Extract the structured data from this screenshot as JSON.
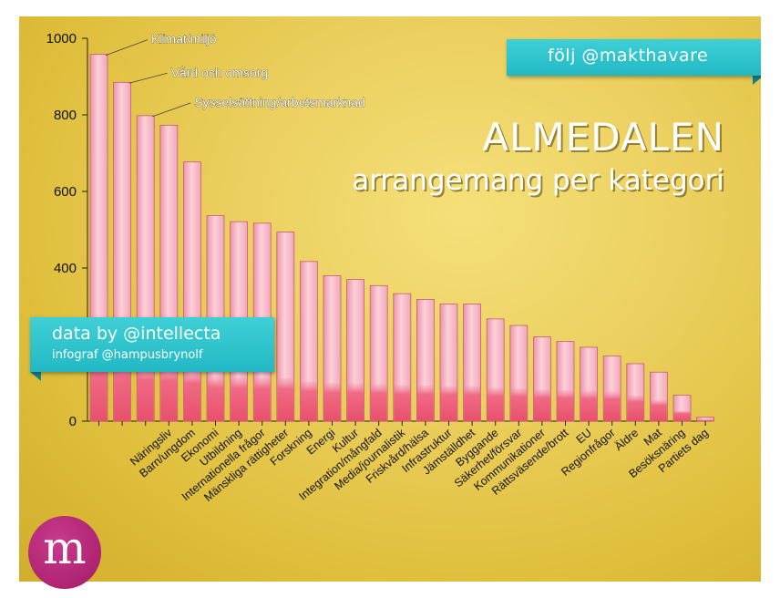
{
  "chart_data": {
    "type": "bar",
    "title": "ALMEDALEN",
    "subtitle": "arrangemang per kategori",
    "categories": [
      "Klimat/miljö",
      "Vård och omsorg",
      "Sysselsättning/arbetsmarknad",
      "Näringsliv",
      "Barn/ungdom",
      "Ekonomi",
      "Utbildning",
      "Internationella frågor",
      "Mänskliga rättigheter",
      "Forskning",
      "Energi",
      "Kultur",
      "Integration/mångfald",
      "Media/journalistik",
      "Friskvård/hälsa",
      "Infrastruktur",
      "Jämställdhet",
      "Byggande",
      "Säkerhet/försvar",
      "Kommunikationer",
      "Rättsväsende/brott",
      "EU",
      "Regionfrågor",
      "Äldre",
      "Mat",
      "Besöksnäring",
      "Partiets dag"
    ],
    "values": [
      958,
      885,
      798,
      773,
      677,
      537,
      521,
      517,
      494,
      417,
      380,
      370,
      354,
      333,
      318,
      306,
      306,
      267,
      250,
      220,
      208,
      193,
      170,
      150,
      128,
      68,
      10
    ],
    "yticks": [
      0,
      400,
      600,
      800,
      1000
    ],
    "ylim": [
      0,
      1000
    ],
    "annotated": [
      "Klimat/miljö",
      "Vård och omsorg",
      "Sysselsättning/arbetsmarknad"
    ],
    "bar_color": "#f7b4c2",
    "bar_base_color": "#f06a84"
  },
  "banner_follow": "följ @makthavare",
  "banner_data": "data by @intellecta",
  "banner_infograf": "infograf @hampusbrynolf",
  "logo_letter": "m",
  "accent": "#2cc3cb"
}
